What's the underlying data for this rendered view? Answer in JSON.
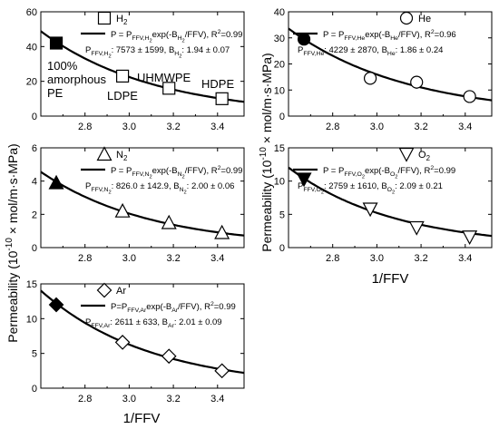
{
  "figure": {
    "ylabel": "Permeability (10",
    "ylabel_sup": "-10",
    "ylabel_rest": " × mol/m·s·MPa)",
    "xlabel_left": "1/FFV",
    "xlabel_right": "1/FFV"
  },
  "chart_data": [
    {
      "id": "H2",
      "type": "scatter",
      "legend_label": "H",
      "legend_sub": "2",
      "marker": "square",
      "fit_label": "P = P",
      "fit_sub": "FFV,H",
      "fit_sub2": "2",
      "fit_mid": "exp(-B",
      "fit_bsub": "H",
      "fit_bsub2": "2",
      "fit_end": "/FFV), R",
      "fit_r2sup": "2",
      "fit_r2": "=0.99",
      "param_pre": "P",
      "param_sub": "FFV,H",
      "param_sub2": "2",
      "param_mid": ": 7573 ± 1599, B",
      "param_bsub": "H",
      "param_bsub2": "2",
      "param_end": ": 1.94 ± 0.07",
      "annotations": [
        "100%",
        "amorphous",
        "PE",
        "LDPE",
        "UHMWPE",
        "HDPE"
      ],
      "x": [
        2.67,
        2.97,
        3.18,
        3.42
      ],
      "y": [
        42,
        23,
        16,
        10
      ],
      "yerr": [
        0,
        0,
        0,
        0
      ],
      "fit": {
        "P": 7573,
        "B": 1.94
      },
      "xlim": [
        2.6,
        3.52
      ],
      "ylim": [
        0,
        60
      ],
      "xticks": [
        "2.8",
        "3.0",
        "3.2",
        "3.4"
      ],
      "yticks": [
        "0",
        "20",
        "40",
        "60"
      ],
      "yticks_v": [
        0,
        20,
        40,
        60
      ],
      "xticks_v": [
        2.8,
        3.0,
        3.2,
        3.4
      ],
      "show_xticklabels": true
    },
    {
      "id": "He",
      "type": "scatter",
      "legend_label": "He",
      "legend_sub": "",
      "marker": "circle",
      "fit_label": "P = P",
      "fit_sub": "FFV,He",
      "fit_sub2": "",
      "fit_mid": "exp(-B",
      "fit_bsub": "He",
      "fit_bsub2": "",
      "fit_end": "/FFV), R",
      "fit_r2sup": "2",
      "fit_r2": "=0.96",
      "param_pre": "P",
      "param_sub": "FFV,He",
      "param_sub2": "",
      "param_mid": ": 4229 ± 2870, B",
      "param_bsub": "He",
      "param_bsub2": "",
      "param_end": ": 1.86 ± 0.24",
      "annotations": [],
      "x": [
        2.67,
        2.97,
        3.18,
        3.42
      ],
      "y": [
        29.5,
        14.5,
        13,
        7.5
      ],
      "yerr": [
        0,
        2.5,
        2.5,
        2.0
      ],
      "fit": {
        "P": 4229,
        "B": 1.86
      },
      "xlim": [
        2.6,
        3.52
      ],
      "ylim": [
        0,
        40
      ],
      "xticks": [
        "2.8",
        "3.0",
        "3.2",
        "3.4"
      ],
      "yticks": [
        "0",
        "10",
        "20",
        "30",
        "40"
      ],
      "yticks_v": [
        0,
        10,
        20,
        30,
        40
      ],
      "xticks_v": [
        2.8,
        3.0,
        3.2,
        3.4
      ],
      "show_xticklabels": true
    },
    {
      "id": "N2",
      "type": "scatter",
      "legend_label": "N",
      "legend_sub": "2",
      "marker": "triangle-up",
      "fit_label": "P = P",
      "fit_sub": "FFV,N",
      "fit_sub2": "2",
      "fit_mid": "exp(-B",
      "fit_bsub": "N",
      "fit_bsub2": "2",
      "fit_end": "/FFV), R",
      "fit_r2sup": "2",
      "fit_r2": "=0.99",
      "param_pre": "P",
      "param_sub": "FFV,N",
      "param_sub2": "2",
      "param_mid": ": 826.0 ± 142.9, B",
      "param_bsub": "N",
      "param_bsub2": "2",
      "param_end": ": 2.00 ± 0.06",
      "annotations": [],
      "x": [
        2.67,
        2.97,
        3.18,
        3.42
      ],
      "y": [
        3.9,
        2.2,
        1.5,
        0.9
      ],
      "yerr": [
        0.3,
        0.15,
        0.1,
        0.1
      ],
      "fit": {
        "P": 826.0,
        "B": 2.0
      },
      "xlim": [
        2.6,
        3.52
      ],
      "ylim": [
        0,
        6
      ],
      "xticks": [
        "2.8",
        "3.0",
        "3.2",
        "3.4"
      ],
      "yticks": [
        "0",
        "2",
        "4",
        "6"
      ],
      "yticks_v": [
        0,
        2,
        4,
        6
      ],
      "xticks_v": [
        2.8,
        3.0,
        3.2,
        3.4
      ],
      "show_xticklabels": true
    },
    {
      "id": "O2",
      "type": "scatter",
      "legend_label": "O",
      "legend_sub": "2",
      "marker": "triangle-down",
      "fit_label": "P = P",
      "fit_sub": "FFV,O",
      "fit_sub2": "2",
      "fit_mid": "exp(-B",
      "fit_bsub": "O",
      "fit_bsub2": "2",
      "fit_end": "/FFV), R",
      "fit_r2sup": "2",
      "fit_r2": "=0.99",
      "param_pre": "P",
      "param_sub": "FFV,O",
      "param_sub2": "2",
      "param_mid": ": 2759 ± 1610, B",
      "param_bsub": "O",
      "param_bsub2": "2",
      "param_end": ": 2.09 ± 0.21",
      "annotations": [],
      "x": [
        2.67,
        2.97,
        3.18,
        3.42
      ],
      "y": [
        10.3,
        5.8,
        3.0,
        1.6
      ],
      "yerr": [
        0.6,
        0.3,
        0.3,
        0.2
      ],
      "fit": {
        "P": 2759,
        "B": 2.09
      },
      "xlim": [
        2.6,
        3.52
      ],
      "ylim": [
        0,
        15
      ],
      "xticks": [
        "2.8",
        "3.0",
        "3.2",
        "3.4"
      ],
      "yticks": [
        "0",
        "5",
        "10",
        "15"
      ],
      "yticks_v": [
        0,
        5,
        10,
        15
      ],
      "xticks_v": [
        2.8,
        3.0,
        3.2,
        3.4
      ],
      "show_xticklabels": true
    },
    {
      "id": "Ar",
      "type": "scatter",
      "legend_label": "Ar",
      "legend_sub": "",
      "marker": "diamond",
      "fit_label": "P=P",
      "fit_sub": "FFV,Ar",
      "fit_sub2": "",
      "fit_mid": "exp(-B",
      "fit_bsub": "Ar",
      "fit_bsub2": "",
      "fit_end": "/FFV), R",
      "fit_r2sup": "2",
      "fit_r2": "=0.99",
      "param_pre": "P",
      "param_sub": "FFV,Ar",
      "param_sub2": "",
      "param_mid": ": 2611 ± 633, B",
      "param_bsub": "Ar",
      "param_bsub2": "",
      "param_end": ": 2.01 ± 0.09",
      "annotations": [],
      "x": [
        2.67,
        2.97,
        3.18,
        3.42
      ],
      "y": [
        12.0,
        6.6,
        4.6,
        2.5
      ],
      "yerr": [
        0.5,
        0.4,
        0.3,
        0.3
      ],
      "fit": {
        "P": 2611,
        "B": 2.01
      },
      "xlim": [
        2.6,
        3.52
      ],
      "ylim": [
        0,
        15
      ],
      "xticks": [
        "2.8",
        "3.0",
        "3.2",
        "3.4"
      ],
      "yticks": [
        "0",
        "5",
        "10",
        "15"
      ],
      "yticks_v": [
        0,
        5,
        10,
        15
      ],
      "xticks_v": [
        2.8,
        3.0,
        3.2,
        3.4
      ],
      "show_xticklabels": true
    }
  ]
}
